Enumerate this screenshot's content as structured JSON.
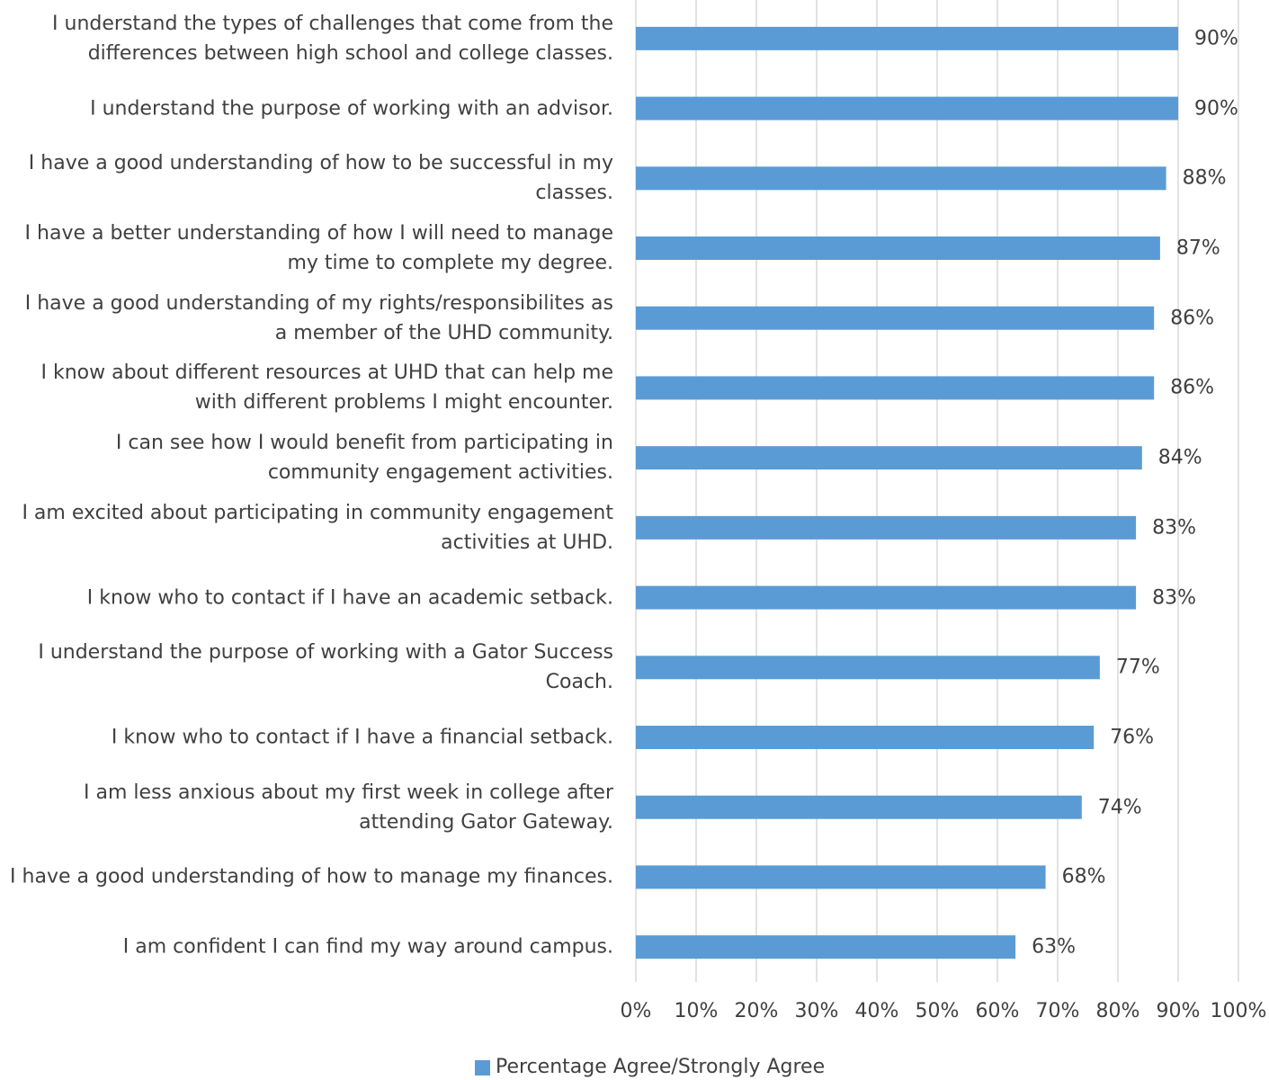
{
  "chart_data": {
    "type": "bar",
    "orientation": "horizontal",
    "categories": [
      "I understand the types of challenges that come from the differences between high school and college classes.",
      "I understand the purpose of working with an advisor.",
      "I have a good understanding of how to be successful in my classes.",
      "I have a better understanding of how I will need to manage my time to complete my degree.",
      "I have a good understanding of my rights/responsibilites as a member of the UHD community.",
      "I know about different resources at UHD that can help me with different problems I might encounter.",
      "I can see how I would benefit from participating in community engagement activities.",
      "I am excited about participating in community engagement activities at UHD.",
      "I know who to contact if I have an academic setback.",
      "I understand the purpose of working with a Gator Success Coach.",
      "I know who to contact if I have a financial setback.",
      "I am less anxious about my first week in college after attending Gator Gateway.",
      "I have a good understanding of how to manage my finances.",
      "I am confident I can find my way around campus."
    ],
    "series": [
      {
        "name": "Percentage Agree/Strongly Agree",
        "color": "#5b9bd5",
        "values": [
          90,
          90,
          88,
          87,
          86,
          86,
          84,
          83,
          83,
          77,
          76,
          74,
          68,
          63
        ],
        "value_labels": [
          "90%",
          "90%",
          "88%",
          "87%",
          "86%",
          "86%",
          "84%",
          "83%",
          "83%",
          "77%",
          "76%",
          "74%",
          "68%",
          "63%"
        ]
      }
    ],
    "xlim": [
      0,
      100
    ],
    "xticks": [
      {
        "value": 0,
        "label": "0%"
      },
      {
        "value": 10,
        "label": "10%"
      },
      {
        "value": 20,
        "label": "20%"
      },
      {
        "value": 30,
        "label": "30%"
      },
      {
        "value": 40,
        "label": "40%"
      },
      {
        "value": 50,
        "label": "50%"
      },
      {
        "value": 60,
        "label": "60%"
      },
      {
        "value": 70,
        "label": "70%"
      },
      {
        "value": 80,
        "label": "80%"
      },
      {
        "value": 90,
        "label": "90%"
      },
      {
        "value": 100,
        "label": "100%"
      }
    ],
    "grid": true,
    "legend": "bottom"
  }
}
